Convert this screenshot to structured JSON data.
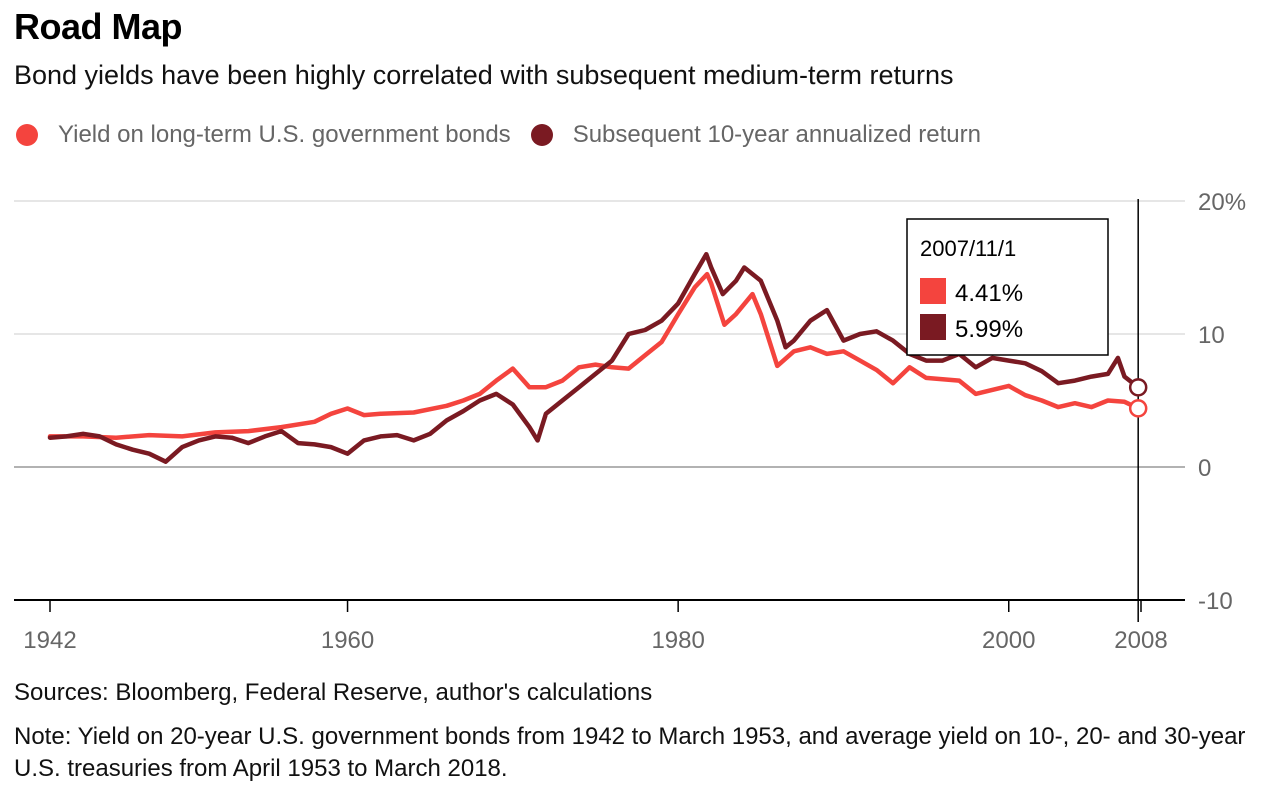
{
  "title": "Road Map",
  "subtitle": "Bond yields have been highly correlated with subsequent medium-term returns",
  "sources": "Sources: Bloomberg, Federal Reserve, author's calculations",
  "note": "Note: Yield on 20-year U.S. government bonds from 1942 to March 1953, and average yield on 10-, 20- and 30-year U.S. treasuries from April 1953 to March 2018.",
  "colors": {
    "yield": "#f4443e",
    "return": "#7a1a22",
    "grid": "#e6e6e6",
    "zero": "#999999",
    "axis": "#000000"
  },
  "tooltip": {
    "date": "2007/11/1",
    "yield_value": "4.41%",
    "return_value": "5.99%"
  },
  "chart_data": {
    "type": "line",
    "title": "Road Map",
    "xlabel": "",
    "ylabel": "",
    "xlim": [
      1942,
      2008
    ],
    "ylim": [
      -10,
      20
    ],
    "x_ticks": [
      "1942",
      "1960",
      "1980",
      "2000",
      "2008"
    ],
    "y_ticks": [
      "20%",
      "10",
      "0",
      "-10"
    ],
    "y_tick_values": [
      20,
      10,
      0,
      -10
    ],
    "x_tick_values": [
      1942,
      1960,
      1980,
      2000,
      2008
    ],
    "grid": true,
    "legend_position": "top-left",
    "series": [
      {
        "name": "Yield on long-term U.S. government bonds",
        "points": [
          [
            1942,
            2.3
          ],
          [
            1944,
            2.3
          ],
          [
            1946,
            2.2
          ],
          [
            1948,
            2.4
          ],
          [
            1950,
            2.3
          ],
          [
            1952,
            2.6
          ],
          [
            1954,
            2.7
          ],
          [
            1956,
            3.0
          ],
          [
            1958,
            3.4
          ],
          [
            1959,
            4.0
          ],
          [
            1960,
            4.4
          ],
          [
            1961,
            3.9
          ],
          [
            1962,
            4.0
          ],
          [
            1964,
            4.1
          ],
          [
            1966,
            4.6
          ],
          [
            1967,
            5.0
          ],
          [
            1968,
            5.5
          ],
          [
            1969,
            6.5
          ],
          [
            1970,
            7.4
          ],
          [
            1971,
            6.0
          ],
          [
            1972,
            6.0
          ],
          [
            1973,
            6.5
          ],
          [
            1974,
            7.5
          ],
          [
            1975,
            7.7
          ],
          [
            1976,
            7.5
          ],
          [
            1977,
            7.4
          ],
          [
            1978,
            8.4
          ],
          [
            1979,
            9.4
          ],
          [
            1980,
            11.5
          ],
          [
            1981,
            13.5
          ],
          [
            1981.75,
            14.5
          ],
          [
            1982,
            13.8
          ],
          [
            1982.8,
            10.7
          ],
          [
            1983.5,
            11.5
          ],
          [
            1984.5,
            13.0
          ],
          [
            1985,
            11.5
          ],
          [
            1986,
            7.6
          ],
          [
            1987,
            8.7
          ],
          [
            1988,
            9.0
          ],
          [
            1989,
            8.5
          ],
          [
            1990,
            8.7
          ],
          [
            1991,
            8.0
          ],
          [
            1992,
            7.3
          ],
          [
            1993,
            6.3
          ],
          [
            1994,
            7.5
          ],
          [
            1995,
            6.7
          ],
          [
            1996,
            6.6
          ],
          [
            1997,
            6.5
          ],
          [
            1998,
            5.5
          ],
          [
            1999,
            5.8
          ],
          [
            2000,
            6.1
          ],
          [
            2001,
            5.4
          ],
          [
            2002,
            5.0
          ],
          [
            2003,
            4.5
          ],
          [
            2004,
            4.8
          ],
          [
            2005,
            4.5
          ],
          [
            2006,
            5.0
          ],
          [
            2007,
            4.9
          ],
          [
            2007.83,
            4.41
          ]
        ]
      },
      {
        "name": "Subsequent 10-year annualized return",
        "points": [
          [
            1942,
            2.2
          ],
          [
            1943,
            2.3
          ],
          [
            1944,
            2.5
          ],
          [
            1945,
            2.3
          ],
          [
            1946,
            1.7
          ],
          [
            1947,
            1.3
          ],
          [
            1948,
            1.0
          ],
          [
            1949,
            0.4
          ],
          [
            1950,
            1.5
          ],
          [
            1951,
            2.0
          ],
          [
            1952,
            2.3
          ],
          [
            1953,
            2.2
          ],
          [
            1954,
            1.8
          ],
          [
            1955,
            2.3
          ],
          [
            1956,
            2.7
          ],
          [
            1957,
            1.8
          ],
          [
            1958,
            1.7
          ],
          [
            1959,
            1.5
          ],
          [
            1960,
            1.0
          ],
          [
            1961,
            2.0
          ],
          [
            1962,
            2.3
          ],
          [
            1963,
            2.4
          ],
          [
            1964,
            2.0
          ],
          [
            1965,
            2.5
          ],
          [
            1966,
            3.5
          ],
          [
            1967,
            4.2
          ],
          [
            1968,
            5.0
          ],
          [
            1969,
            5.5
          ],
          [
            1970,
            4.7
          ],
          [
            1971,
            3.0
          ],
          [
            1971.5,
            2.0
          ],
          [
            1972,
            4.0
          ],
          [
            1973,
            5.0
          ],
          [
            1974,
            6.0
          ],
          [
            1975,
            7.0
          ],
          [
            1976,
            8.0
          ],
          [
            1977,
            10.0
          ],
          [
            1978,
            10.3
          ],
          [
            1979,
            11.0
          ],
          [
            1980,
            12.3
          ],
          [
            1981,
            14.5
          ],
          [
            1981.7,
            16.0
          ],
          [
            1982,
            15.0
          ],
          [
            1982.7,
            13.0
          ],
          [
            1983.5,
            14.0
          ],
          [
            1984,
            15.0
          ],
          [
            1985,
            14.0
          ],
          [
            1986,
            11.0
          ],
          [
            1986.5,
            9.0
          ],
          [
            1987,
            9.5
          ],
          [
            1988,
            11.0
          ],
          [
            1989,
            11.8
          ],
          [
            1990,
            9.5
          ],
          [
            1991,
            10.0
          ],
          [
            1992,
            10.2
          ],
          [
            1993,
            9.5
          ],
          [
            1994,
            8.5
          ],
          [
            1995,
            8.0
          ],
          [
            1996,
            8.0
          ],
          [
            1997,
            8.5
          ],
          [
            1998,
            7.5
          ],
          [
            1999,
            8.2
          ],
          [
            2000,
            8.0
          ],
          [
            2001,
            7.8
          ],
          [
            2002,
            7.2
          ],
          [
            2003,
            6.3
          ],
          [
            2004,
            6.5
          ],
          [
            2005,
            6.8
          ],
          [
            2006,
            7.0
          ],
          [
            2006.6,
            8.2
          ],
          [
            2007,
            6.8
          ],
          [
            2007.83,
            5.99
          ]
        ]
      }
    ]
  }
}
